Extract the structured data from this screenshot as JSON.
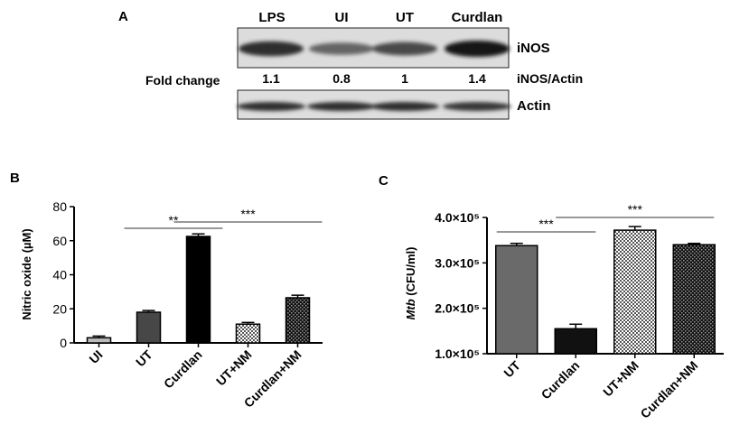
{
  "panel_a": {
    "label": "A",
    "lanes": [
      "LPS",
      "UI",
      "UT",
      "Curdlan"
    ],
    "fold_change_label": "Fold change",
    "fold_change_values": [
      "1.1",
      "0.8",
      "1",
      "1.4"
    ],
    "ratio_label": "iNOS/Actin",
    "bands": [
      "iNOS",
      "Actin"
    ],
    "inos_band_intensity": [
      0.85,
      0.55,
      0.7,
      1.0
    ],
    "actin_band_intensity": [
      0.85,
      0.85,
      0.85,
      0.8
    ]
  },
  "chart_data": [
    {
      "panel_label": "B",
      "type": "bar",
      "categories": [
        "UI",
        "UT",
        "Curdlan",
        "UT+NM",
        "Curdlan+NM"
      ],
      "values": [
        3,
        18,
        62.5,
        11,
        26.5
      ],
      "errors": [
        1,
        1,
        1.5,
        1,
        1.5
      ],
      "fills": [
        "#bbbbbb",
        "#474747",
        "#000000",
        "hatch-light",
        "hatch-dark"
      ],
      "ylabel": "Nitric oxide (µM)",
      "ylim": [
        0,
        80
      ],
      "yticks": [
        "0",
        "20",
        "40",
        "60",
        "80"
      ],
      "significance": [
        {
          "label": "**",
          "from": 1,
          "to": 2
        },
        {
          "label": "***",
          "from": 2,
          "to": 4
        }
      ]
    },
    {
      "panel_label": "C",
      "type": "bar",
      "categories": [
        "UT",
        "Curdlan",
        "UT+NM",
        "Curdlan+NM"
      ],
      "values": [
        338000,
        155000,
        372000,
        340000
      ],
      "errors": [
        5000,
        10000,
        8000,
        3000
      ],
      "fills": [
        "#6a6a6a",
        "#111111",
        "hatch-light",
        "hatch-dark"
      ],
      "ylabel_italic": "Mtb",
      "ylabel_rest": " (CFU/ml)",
      "ylim": [
        100000,
        400000
      ],
      "yticks": [
        "1.0×10⁵",
        "2.0×10⁵",
        "3.0×10⁵",
        "4.0×10⁵"
      ],
      "significance": [
        {
          "label": "***",
          "from": 0,
          "to": 1
        },
        {
          "label": "***",
          "from": 1,
          "to": 3
        }
      ]
    }
  ]
}
